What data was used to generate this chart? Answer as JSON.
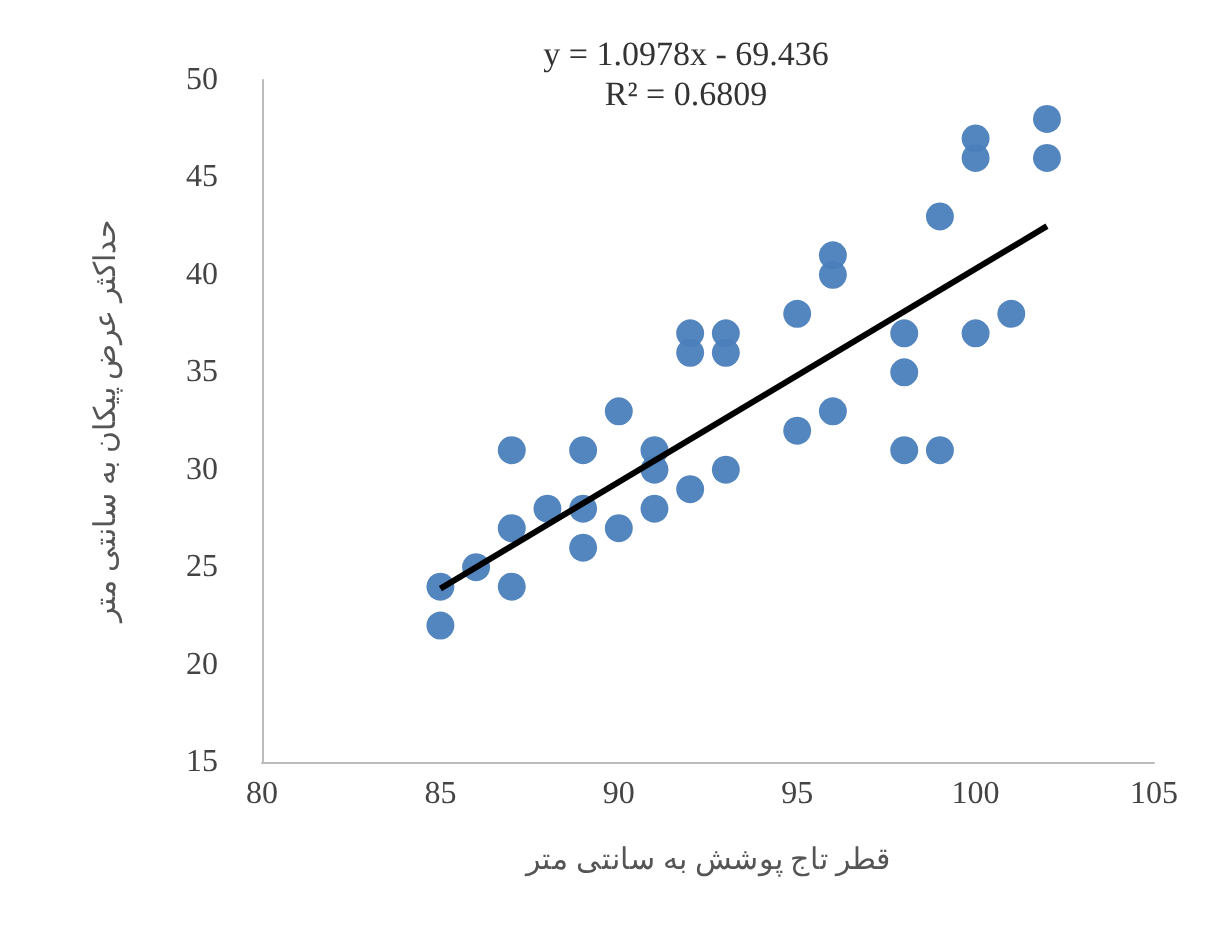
{
  "chart_data": {
    "type": "scatter",
    "xlabel": "قطر تاج پوشش به سانتی متر",
    "ylabel": "حداکثر عرض پیکان به سانتی متر",
    "xlim": [
      80,
      105
    ],
    "xticks": [
      80,
      85,
      90,
      95,
      100,
      105
    ],
    "ylim": [
      15,
      50
    ],
    "yticks": [
      15,
      20,
      25,
      30,
      35,
      40,
      45,
      50
    ],
    "grid": false,
    "marker": "circle",
    "annotations": [
      "y = 1.0978x - 69.436",
      "R² = 0.6809"
    ],
    "series": [
      {
        "color": "#4a7ebb",
        "x": [
          85,
          85,
          86,
          87,
          87,
          87,
          88,
          89,
          89,
          89,
          90,
          90,
          91,
          91,
          91,
          92,
          92,
          92,
          93,
          93,
          93,
          95,
          95,
          96,
          96,
          96,
          98,
          98,
          98,
          99,
          99,
          100,
          100,
          100,
          101,
          102,
          102
        ],
        "values": [
          24,
          22,
          25,
          31,
          27,
          24,
          28,
          31,
          28,
          26,
          33,
          27,
          31,
          30,
          28,
          37,
          36,
          29,
          37,
          36,
          30,
          38,
          32,
          40,
          41,
          33,
          37,
          35,
          31,
          31,
          43,
          46,
          47,
          37,
          38,
          48,
          46
        ]
      },
      {
        "type": "line",
        "color": "#000000",
        "x": [
          85,
          102
        ],
        "values": [
          23.9,
          42.5
        ],
        "line_style": "solid",
        "marker": "none"
      }
    ]
  }
}
